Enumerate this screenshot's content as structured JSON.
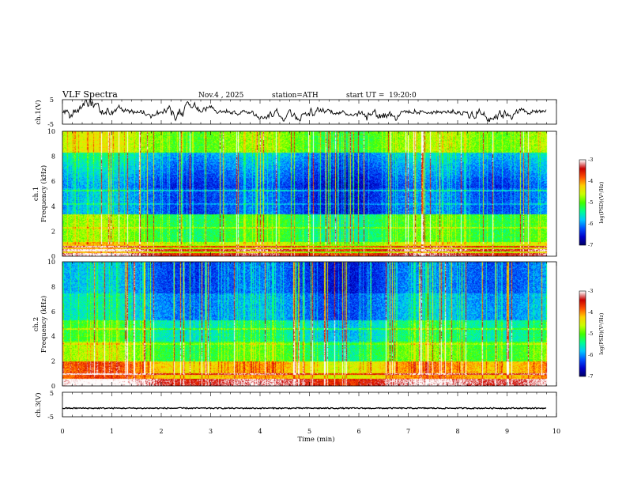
{
  "header": {
    "title": "VLF Spectra",
    "date": "Nov.4 , 2025",
    "station": "station=ATH",
    "start_label": "start UT =",
    "start_time": "19:20:0"
  },
  "chart_data": [
    {
      "type": "line",
      "name": "ch1-waveform",
      "ylabel": "ch.1(V)",
      "yticks": [
        "5",
        "-5"
      ],
      "ylim": [
        -5,
        5
      ],
      "xlim": [
        0,
        10
      ],
      "data_extent_min": 9.8
    },
    {
      "type": "heatmap",
      "name": "ch1-spectrogram",
      "ylabel_channel": "ch.1",
      "ylabel": "Frequency (kHz)",
      "yticks": [
        "10",
        "8",
        "6",
        "4",
        "2",
        "0"
      ],
      "ylim": [
        0,
        10
      ],
      "xlim": [
        0,
        10
      ],
      "colorbar": {
        "label": "log(PSD)(V²/Hz)",
        "ticks": [
          "-3",
          "-4",
          "-5",
          "-6",
          "-7"
        ],
        "range": [
          -7,
          -3
        ]
      }
    },
    {
      "type": "heatmap",
      "name": "ch2-spectrogram",
      "ylabel_channel": "ch.2",
      "ylabel": "Frequency (kHz)",
      "yticks": [
        "10",
        "8",
        "6",
        "4",
        "2",
        "0"
      ],
      "ylim": [
        0,
        10
      ],
      "xlim": [
        0,
        10
      ],
      "colorbar": {
        "label": "log(PSD)(V²/Hz)",
        "ticks": [
          "-3",
          "-4",
          "-5",
          "-6",
          "-7"
        ],
        "range": [
          -7,
          -3
        ]
      }
    },
    {
      "type": "line",
      "name": "ch3-waveform",
      "ylabel": "ch.3(V)",
      "yticks": [
        "5",
        "-5"
      ],
      "ylim": [
        -5,
        5
      ],
      "level": -1.5,
      "xlim": [
        0,
        10
      ]
    }
  ],
  "xaxis": {
    "label": "Time (min)",
    "ticks": [
      "0",
      "1",
      "2",
      "3",
      "4",
      "5",
      "6",
      "7",
      "8",
      "9",
      "10"
    ]
  },
  "colors": {
    "text": "#000000",
    "frame": "#000000",
    "colormap": [
      "#000060",
      "#0000c8",
      "#0050ff",
      "#00c8ff",
      "#00ff90",
      "#40ff00",
      "#c8ff00",
      "#ffd000",
      "#ff5000",
      "#c80000",
      "#ffffff"
    ]
  }
}
